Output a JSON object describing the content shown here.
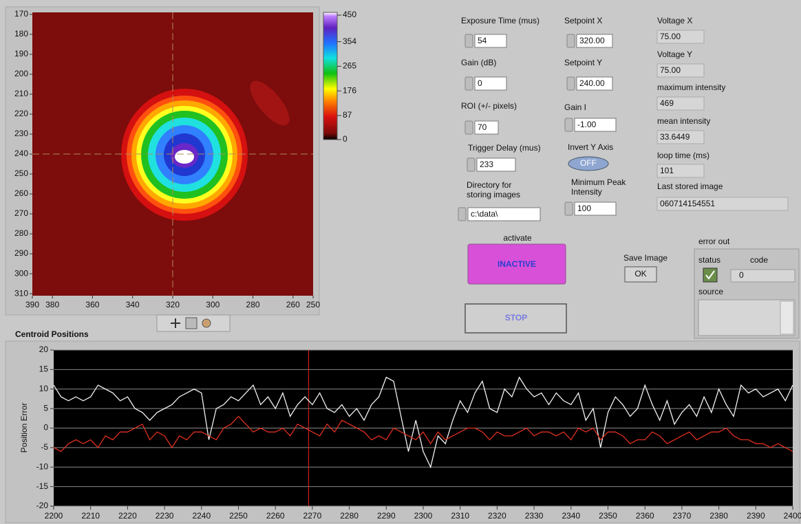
{
  "chart_data": [
    {
      "type": "image",
      "xlim": [
        390,
        250
      ],
      "xticks": [
        390,
        380,
        360,
        340,
        320,
        300,
        280,
        260,
        250
      ],
      "ylim": [
        169,
        311
      ],
      "yticks": [
        170,
        180,
        190,
        200,
        210,
        220,
        230,
        240,
        250,
        260,
        270,
        280,
        290,
        300,
        310
      ],
      "colorbar": {
        "lim": [
          0,
          460
        ],
        "ticks": [
          450,
          354,
          265,
          176,
          87,
          0
        ]
      },
      "cursor": {
        "x": 320,
        "y": 240
      }
    },
    {
      "type": "line",
      "title": "Centroid Positions",
      "y_label": "Position Error",
      "x": [
        2200,
        2202,
        2204,
        2206,
        2208,
        2210,
        2212,
        2214,
        2216,
        2218,
        2220,
        2222,
        2224,
        2226,
        2228,
        2230,
        2232,
        2234,
        2236,
        2238,
        2240,
        2242,
        2244,
        2246,
        2248,
        2250,
        2252,
        2254,
        2256,
        2258,
        2260,
        2262,
        2264,
        2266,
        2268,
        2270,
        2272,
        2274,
        2276,
        2278,
        2280,
        2282,
        2284,
        2286,
        2288,
        2290,
        2292,
        2294,
        2296,
        2298,
        2300,
        2302,
        2304,
        2306,
        2308,
        2310,
        2312,
        2314,
        2316,
        2318,
        2320,
        2322,
        2324,
        2326,
        2328,
        2330,
        2332,
        2334,
        2336,
        2338,
        2340,
        2342,
        2344,
        2346,
        2348,
        2350,
        2352,
        2354,
        2356,
        2358,
        2360,
        2362,
        2364,
        2366,
        2368,
        2370,
        2372,
        2374,
        2376,
        2378,
        2380,
        2382,
        2384,
        2386,
        2388,
        2390,
        2392,
        2394,
        2396,
        2398,
        2400
      ],
      "xlim": [
        2200,
        2400
      ],
      "xticks": [
        2200,
        2210,
        2220,
        2230,
        2240,
        2250,
        2260,
        2270,
        2280,
        2290,
        2300,
        2310,
        2320,
        2330,
        2340,
        2350,
        2360,
        2370,
        2380,
        2390,
        2400
      ],
      "ylim": [
        -20,
        20
      ],
      "yticks": [
        20,
        15,
        10,
        5,
        0,
        -5,
        -10,
        -15,
        -20
      ],
      "grid": true,
      "cursor_x": 2269,
      "series": [
        {
          "color": "#f2f2f2",
          "values": [
            11,
            8,
            7,
            8,
            7,
            8,
            11,
            10,
            9,
            7,
            8,
            5,
            4,
            2,
            4,
            5,
            6,
            8,
            9,
            10,
            9,
            -3,
            5,
            6,
            8,
            7,
            9,
            11,
            6,
            8,
            5,
            9,
            3,
            6,
            8,
            6,
            9,
            5,
            4,
            6,
            3,
            5,
            2,
            6,
            8,
            13,
            12,
            3,
            -6,
            2,
            -6,
            -10,
            -2,
            -4,
            2,
            7,
            4,
            9,
            12,
            5,
            4,
            10,
            8,
            13,
            10,
            8,
            9,
            6,
            9,
            7,
            6,
            9,
            2,
            5,
            -5,
            4,
            8,
            6,
            3,
            5,
            11,
            6,
            2,
            7,
            1,
            4,
            6,
            3,
            8,
            4,
            10,
            6,
            3,
            11,
            9,
            10,
            8,
            9,
            10,
            7,
            11
          ]
        },
        {
          "color": "#e03020",
          "values": [
            -5,
            -6,
            -4,
            -3,
            -4,
            -3,
            -5,
            -2,
            -3,
            -1,
            -1,
            0,
            1,
            -3,
            -1,
            -2,
            -5,
            -2,
            -3,
            -1,
            -1,
            -2,
            -3,
            0,
            1,
            3,
            1,
            -1,
            0,
            -1,
            -1,
            0,
            -2,
            1,
            0,
            -1,
            -2,
            1,
            -1,
            2,
            1,
            0,
            -1,
            -3,
            -2,
            -3,
            0,
            -1,
            -2,
            -3,
            -1,
            -4,
            -1,
            -3,
            -2,
            -1,
            0,
            0,
            -1,
            -3,
            -1,
            -2,
            -2,
            -1,
            0,
            -2,
            -1,
            -1,
            -2,
            -1,
            -3,
            0,
            -1,
            0,
            -3,
            -1,
            -1,
            -2,
            -4,
            -3,
            -3,
            -1,
            -2,
            -4,
            -3,
            -2,
            -1,
            -3,
            -2,
            -1,
            -1,
            0,
            -2,
            -3,
            -3,
            -4,
            -4,
            -5,
            -4,
            -5,
            -6
          ]
        }
      ]
    }
  ],
  "panel": {
    "controls": [
      {
        "label": "Exposure Time (mus)",
        "value": "54"
      },
      {
        "label": "Gain (dB)",
        "value": "0"
      },
      {
        "label": "ROI (+/- pixels)",
        "value": "70"
      },
      {
        "label": "Trigger Delay (mus)",
        "value": "233"
      },
      {
        "label": "Directory for storing images",
        "value": "c:\\data\\"
      },
      {
        "label": "Setpoint X",
        "value": "320.00"
      },
      {
        "label": "Setpoint Y",
        "value": "240.00"
      },
      {
        "label": "Gain I",
        "value": "-1.00"
      },
      {
        "label": "Minimum Peak Intensity",
        "value": "100"
      }
    ],
    "invert_y": {
      "label": "Invert Y Axis",
      "value": "OFF"
    },
    "indicators": [
      {
        "label": "Voltage X",
        "value": "75.00"
      },
      {
        "label": "Voltage Y",
        "value": "75.00"
      },
      {
        "label": "maximum intensity",
        "value": "469"
      },
      {
        "label": "mean intensity",
        "value": "33.6449"
      },
      {
        "label": "loop time (ms)",
        "value": "101"
      },
      {
        "label": "Last stored image",
        "value": "060714154551"
      }
    ],
    "activate": {
      "label": "activate",
      "value": "INACTIVE"
    },
    "stop": "STOP",
    "save_image": {
      "label": "Save Image",
      "button": "OK"
    },
    "error_out": {
      "label": "error out",
      "status": "status",
      "code_label": "code",
      "code": "0",
      "source": "source"
    }
  }
}
